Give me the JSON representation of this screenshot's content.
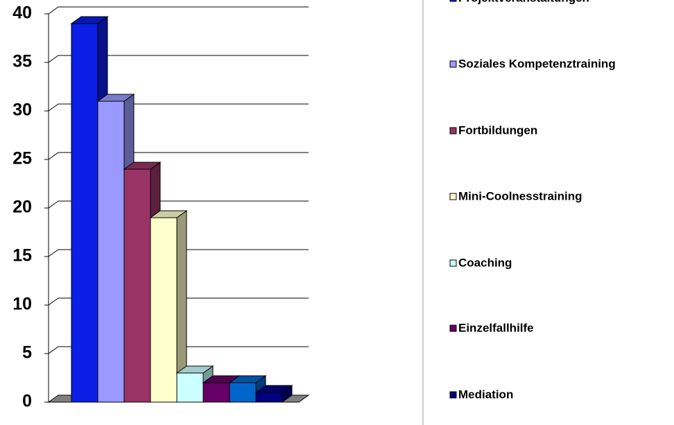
{
  "chart_data": {
    "type": "bar3d",
    "series": [
      {
        "name": "Projektveranstaltungen",
        "color": "#0a1ee6",
        "values": [
          39
        ]
      },
      {
        "name": "Soziales Kompetenztraining",
        "color": "#9999ff",
        "values": [
          31
        ]
      },
      {
        "name": "Fortbildungen",
        "color": "#993366",
        "values": [
          24
        ]
      },
      {
        "name": "Mini-Coolnesstraining",
        "color": "#ffffcc",
        "values": [
          19
        ]
      },
      {
        "name": "Coaching",
        "color": "#ccffff",
        "values": [
          3
        ]
      },
      {
        "name": "Einzelfallhilfe",
        "color": "#660066",
        "values": [
          2
        ]
      },
      {
        "name": null,
        "color": "#0066cc",
        "values": [
          2
        ]
      },
      {
        "name": "Mediation",
        "color": "#000080",
        "values": [
          1
        ]
      }
    ],
    "ylim": [
      0,
      40
    ],
    "yticks": [
      0,
      5,
      10,
      15,
      20,
      25,
      30,
      35,
      40
    ],
    "grid": true,
    "legend": "right"
  }
}
